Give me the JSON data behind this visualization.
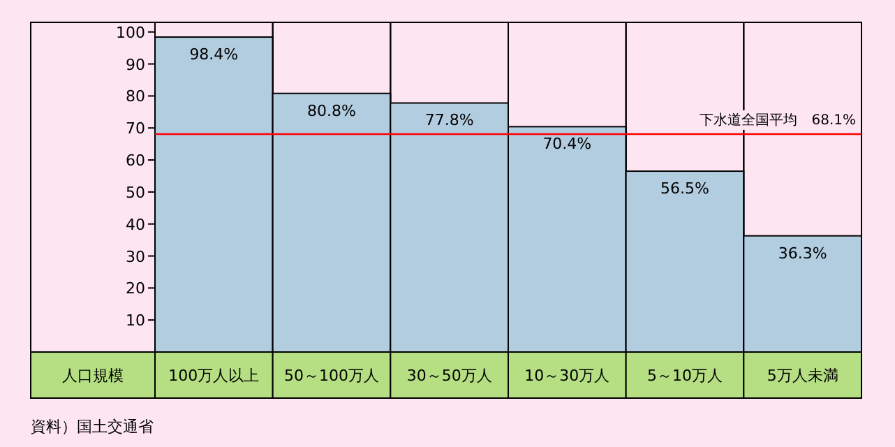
{
  "chart_data": {
    "type": "bar",
    "categories": [
      "100万人以上",
      "50～100万人",
      "30～50万人",
      "10～30万人",
      "5～10万人",
      "5万人未満"
    ],
    "xlabel": "人口規模",
    "values": [
      98.4,
      80.8,
      77.8,
      70.4,
      56.5,
      36.3
    ],
    "value_labels": [
      "98.4%",
      "80.8%",
      "77.8%",
      "70.4%",
      "56.5%",
      "36.3%"
    ],
    "color": "#b3cde0",
    "ylim": [
      0,
      103
    ],
    "yticks": [
      10,
      20,
      30,
      40,
      50,
      60,
      70,
      80,
      90,
      100
    ],
    "ref_lines": [
      {
        "axis": "y",
        "value": 68.1,
        "label": "下水道全国平均　68.1%",
        "color": "#ff0000"
      }
    ],
    "annotations": [
      "資料）国土交通省"
    ]
  }
}
